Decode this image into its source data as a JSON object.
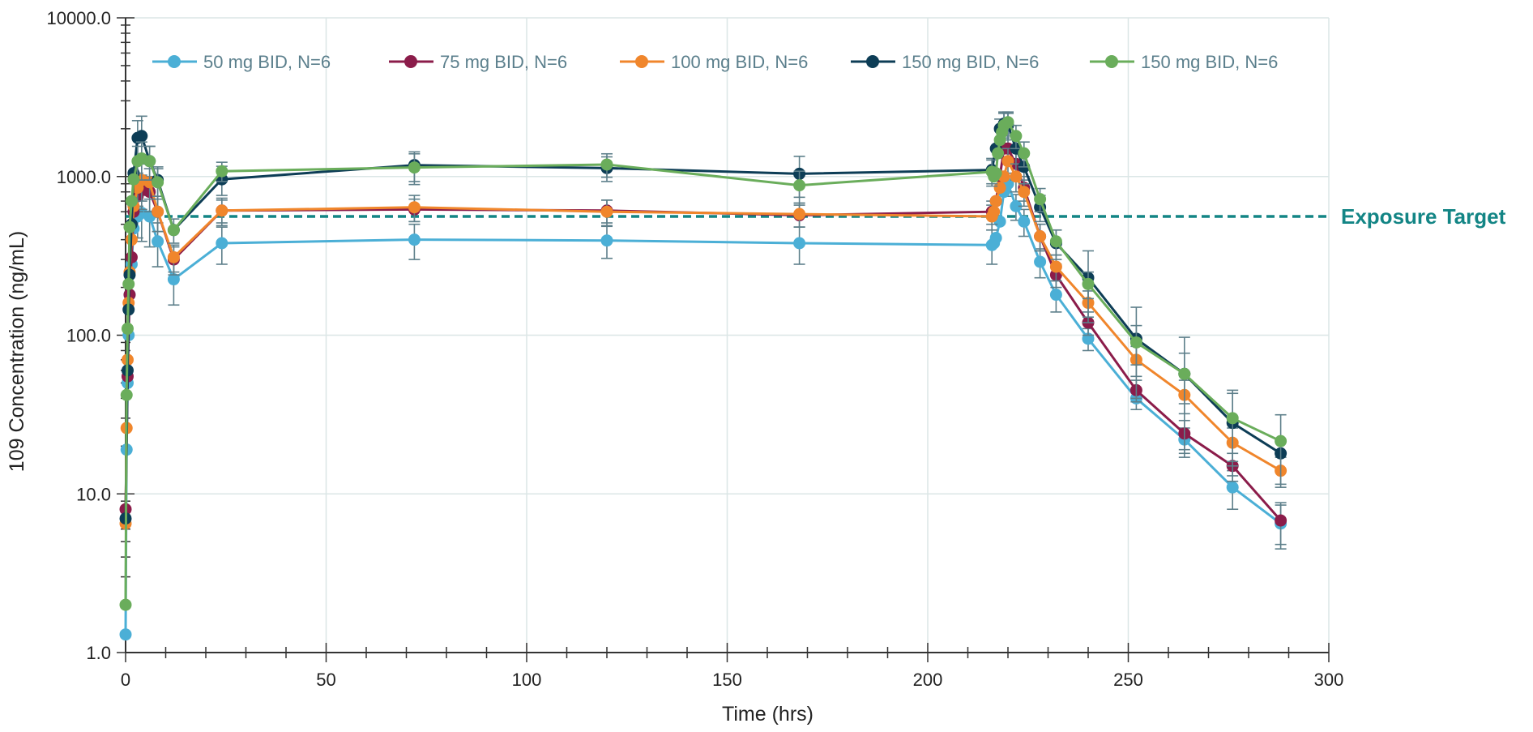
{
  "chart_data": {
    "type": "line",
    "title": "",
    "xlabel": "Time (hrs)",
    "ylabel": "109  Concentration (ng/mL)",
    "xlim": [
      0,
      300
    ],
    "ylim": [
      1,
      10000
    ],
    "y_scale": "log",
    "x_ticks": [
      0,
      50,
      100,
      150,
      200,
      250,
      300
    ],
    "x_tick_labels": [
      "0",
      "50",
      "100",
      "150",
      "200",
      "250",
      "300"
    ],
    "y_ticks": [
      1,
      10,
      100,
      1000,
      10000
    ],
    "y_tick_labels": [
      "1.0",
      "10.0",
      "100.0",
      "1000.0",
      "10000.0"
    ],
    "grid": true,
    "legend_position": "top",
    "reference_line": {
      "label": "Exposure Target",
      "y": 560,
      "color": "#138585",
      "style": "dashed"
    },
    "series": [
      {
        "name": "50 mg BID, N=6",
        "color": "#4bafd6",
        "x": [
          0,
          0.25,
          0.5,
          0.75,
          1,
          1.5,
          2,
          3,
          4,
          6,
          8,
          12,
          24,
          72,
          120,
          168,
          216,
          216.5,
          217,
          218,
          219,
          220,
          222,
          224,
          228,
          232,
          240,
          252,
          264,
          276,
          288
        ],
        "y": [
          1.3,
          19,
          50,
          100,
          180,
          280,
          470,
          560,
          590,
          560,
          390,
          225,
          380,
          400,
          395,
          380,
          370,
          380,
          410,
          520,
          800,
          900,
          650,
          520,
          290,
          180,
          95,
          40,
          22,
          11,
          6.5
        ],
        "err": [
          0,
          0,
          0,
          0,
          0,
          0,
          0,
          150,
          200,
          200,
          120,
          70,
          100,
          100,
          90,
          100,
          90,
          0,
          0,
          0,
          0,
          150,
          120,
          100,
          60,
          40,
          15,
          6,
          4,
          3,
          2
        ]
      },
      {
        "name": "75 mg BID, N=6",
        "color": "#8b1c4a",
        "x": [
          0,
          0.5,
          1,
          1.5,
          2,
          3,
          4,
          6,
          8,
          12,
          24,
          72,
          120,
          168,
          216,
          217,
          218,
          219,
          220,
          222,
          224,
          228,
          232,
          240,
          252,
          264,
          276,
          288
        ],
        "y": [
          8,
          55,
          180,
          310,
          600,
          750,
          820,
          800,
          600,
          300,
          610,
          620,
          610,
          570,
          600,
          700,
          1000,
          1500,
          1500,
          1200,
          850,
          420,
          240,
          120,
          45,
          24,
          15,
          6.8
        ],
        "err": [
          0,
          0,
          0,
          0,
          0,
          150,
          200,
          200,
          150,
          60,
          100,
          100,
          100,
          90,
          100,
          0,
          0,
          0,
          300,
          250,
          150,
          80,
          40,
          20,
          7,
          5,
          3,
          2
        ]
      },
      {
        "name": "100 mg BID, N=6",
        "color": "#f0862c",
        "x": [
          0,
          0.25,
          0.5,
          0.75,
          1,
          1.5,
          2,
          3,
          4,
          6,
          8,
          12,
          24,
          72,
          120,
          168,
          216,
          216.5,
          217,
          218,
          219,
          220,
          222,
          224,
          228,
          232,
          240,
          252,
          264,
          276,
          288
        ],
        "y": [
          6.5,
          26,
          70,
          160,
          250,
          400,
          650,
          850,
          950,
          920,
          600,
          310,
          610,
          640,
          600,
          580,
          560,
          600,
          700,
          850,
          1000,
          1250,
          1000,
          800,
          420,
          270,
          160,
          70,
          42,
          21,
          14
        ],
        "err": [
          0,
          0,
          0,
          0,
          0,
          0,
          0,
          200,
          250,
          200,
          150,
          60,
          120,
          120,
          110,
          100,
          100,
          0,
          0,
          0,
          0,
          250,
          200,
          150,
          80,
          50,
          30,
          15,
          10,
          5,
          3
        ]
      },
      {
        "name": "150 mg BID, N=6",
        "color": "#0d3d56",
        "x": [
          0,
          0.5,
          0.75,
          1,
          1.5,
          2,
          3,
          4,
          6,
          8,
          12,
          24,
          72,
          120,
          168,
          216,
          217,
          218,
          219,
          220,
          222,
          224,
          228,
          232,
          240,
          252,
          264,
          276,
          288
        ],
        "y": [
          7,
          60,
          145,
          240,
          500,
          1050,
          1750,
          1800,
          1250,
          950,
          460,
          960,
          1180,
          1130,
          1040,
          1100,
          1500,
          2000,
          2150,
          2100,
          1500,
          1150,
          640,
          380,
          230,
          95,
          57,
          28,
          18
        ],
        "err": [
          0,
          0,
          0,
          0,
          0,
          0,
          500,
          600,
          300,
          200,
          0,
          200,
          250,
          200,
          300,
          200,
          0,
          300,
          400,
          400,
          300,
          250,
          120,
          80,
          110,
          55,
          40,
          15,
          0
        ]
      },
      {
        "name": "150 mg BID, N=6",
        "color": "#6aad5b",
        "x": [
          0,
          0.25,
          0.5,
          0.75,
          1,
          1.5,
          2,
          3,
          4,
          6,
          8,
          12,
          24,
          72,
          120,
          168,
          216,
          216.5,
          217,
          217.5,
          218,
          218.5,
          219,
          220,
          222,
          224,
          228,
          232,
          240,
          252,
          264,
          276,
          288
        ],
        "y": [
          2,
          42,
          110,
          210,
          480,
          700,
          960,
          1250,
          1300,
          1250,
          920,
          460,
          1080,
          1140,
          1190,
          880,
          1070,
          1000,
          1050,
          1400,
          1700,
          1900,
          2100,
          2200,
          1800,
          1400,
          720,
          390,
          210,
          90,
          57,
          30,
          21.5
        ],
        "err": [
          0,
          0,
          0,
          0,
          0,
          0,
          0,
          300,
          350,
          300,
          200,
          80,
          150,
          250,
          200,
          200,
          200,
          0,
          0,
          0,
          0,
          0,
          400,
          350,
          300,
          250,
          120,
          70,
          40,
          25,
          20,
          15,
          10
        ]
      }
    ]
  }
}
